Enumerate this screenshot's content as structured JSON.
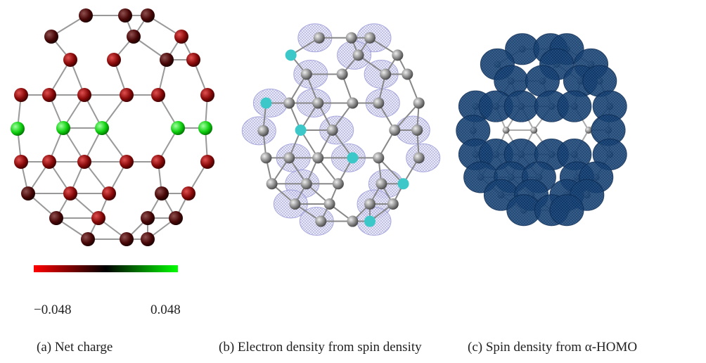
{
  "colorbar": {
    "labels": [
      "−0.048",
      "0.048"
    ]
  },
  "panels": [
    {
      "caption": "(a) Net charge"
    },
    {
      "caption": "(b) Electron density from spin density"
    },
    {
      "caption": "(c) Spin density from α-HOMO"
    }
  ]
}
